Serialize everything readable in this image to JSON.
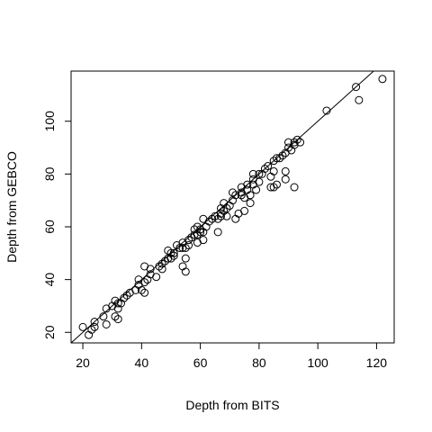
{
  "chart_data": {
    "type": "scatter",
    "xlabel": "Depth from BITS",
    "ylabel": "Depth from GEBCO",
    "xlim": [
      16,
      126
    ],
    "ylim": [
      16,
      119
    ],
    "xticks": [
      20,
      40,
      60,
      80,
      100,
      120
    ],
    "yticks": [
      20,
      40,
      60,
      80,
      100
    ],
    "reference_line": {
      "intercept": 0,
      "slope": 1
    },
    "grid": false,
    "legend": "none",
    "points": [
      [
        20,
        22
      ],
      [
        22,
        19
      ],
      [
        23,
        21
      ],
      [
        24,
        22
      ],
      [
        24,
        24
      ],
      [
        27,
        26
      ],
      [
        28,
        23
      ],
      [
        28,
        29
      ],
      [
        30,
        30
      ],
      [
        31,
        26
      ],
      [
        31,
        32
      ],
      [
        32,
        29
      ],
      [
        32,
        31
      ],
      [
        32,
        25
      ],
      [
        33,
        31
      ],
      [
        34,
        33
      ],
      [
        35,
        34
      ],
      [
        36,
        35
      ],
      [
        38,
        36
      ],
      [
        39,
        38
      ],
      [
        39,
        40
      ],
      [
        40,
        36
      ],
      [
        41,
        35
      ],
      [
        41,
        39
      ],
      [
        41,
        45
      ],
      [
        42,
        40
      ],
      [
        43,
        42
      ],
      [
        43,
        44
      ],
      [
        45,
        41
      ],
      [
        46,
        45
      ],
      [
        47,
        44
      ],
      [
        47,
        46
      ],
      [
        48,
        47
      ],
      [
        49,
        48
      ],
      [
        49,
        51
      ],
      [
        50,
        48
      ],
      [
        50,
        50
      ],
      [
        51,
        50
      ],
      [
        51,
        49
      ],
      [
        52,
        53
      ],
      [
        53,
        52
      ],
      [
        54,
        54
      ],
      [
        54,
        52
      ],
      [
        54,
        45
      ],
      [
        55,
        43
      ],
      [
        55,
        48
      ],
      [
        55,
        52
      ],
      [
        56,
        55
      ],
      [
        56,
        53
      ],
      [
        57,
        56
      ],
      [
        58,
        57
      ],
      [
        58,
        59
      ],
      [
        59,
        54
      ],
      [
        59,
        57
      ],
      [
        59,
        60
      ],
      [
        60,
        58
      ],
      [
        60,
        59
      ],
      [
        61,
        55
      ],
      [
        61,
        58
      ],
      [
        61,
        63
      ],
      [
        62,
        60
      ],
      [
        63,
        62
      ],
      [
        64,
        63
      ],
      [
        65,
        64
      ],
      [
        66,
        63
      ],
      [
        66,
        58
      ],
      [
        67,
        64
      ],
      [
        67,
        67
      ],
      [
        67,
        65
      ],
      [
        68,
        66
      ],
      [
        68,
        69
      ],
      [
        69,
        67
      ],
      [
        69,
        64
      ],
      [
        70,
        68
      ],
      [
        71,
        70
      ],
      [
        71,
        73
      ],
      [
        72,
        72
      ],
      [
        72,
        63
      ],
      [
        73,
        65
      ],
      [
        74,
        72
      ],
      [
        74,
        73
      ],
      [
        74,
        75
      ],
      [
        75,
        66
      ],
      [
        75,
        71
      ],
      [
        76,
        74
      ],
      [
        76,
        76
      ],
      [
        77,
        72
      ],
      [
        77,
        69
      ],
      [
        78,
        76
      ],
      [
        78,
        78
      ],
      [
        78,
        80
      ],
      [
        79,
        74
      ],
      [
        80,
        77
      ],
      [
        80,
        80
      ],
      [
        81,
        80
      ],
      [
        82,
        82
      ],
      [
        83,
        83
      ],
      [
        84,
        79
      ],
      [
        84,
        75
      ],
      [
        85,
        85
      ],
      [
        85,
        81
      ],
      [
        85,
        75
      ],
      [
        86,
        86
      ],
      [
        86,
        76
      ],
      [
        87,
        86
      ],
      [
        88,
        87
      ],
      [
        89,
        78
      ],
      [
        89,
        88
      ],
      [
        89,
        81
      ],
      [
        90,
        90
      ],
      [
        90,
        92
      ],
      [
        91,
        89
      ],
      [
        92,
        91
      ],
      [
        92,
        92
      ],
      [
        92,
        75
      ],
      [
        93,
        93
      ],
      [
        94,
        92
      ],
      [
        103,
        104
      ],
      [
        113,
        113
      ],
      [
        114,
        108
      ],
      [
        122,
        116
      ]
    ]
  }
}
